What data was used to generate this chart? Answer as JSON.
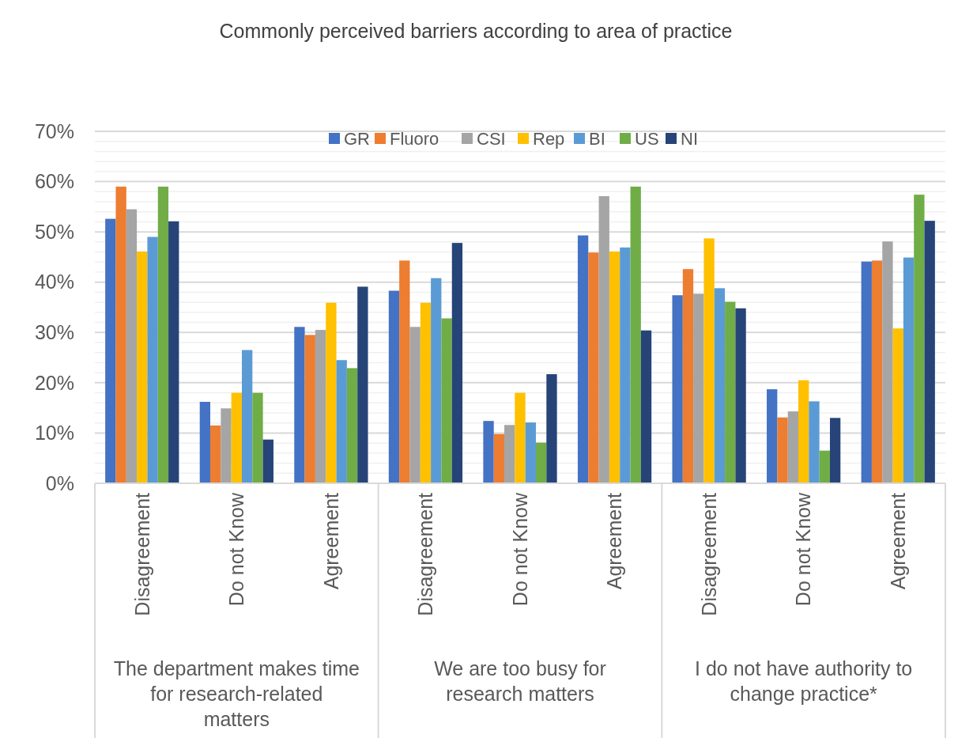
{
  "chart_data": {
    "type": "bar",
    "title": "Commonly perceived barriers according to area of practice",
    "categories": [
      "Disagreement",
      "Do not Know",
      "Agreement",
      "Disagreement",
      "Do not Know",
      "Agreement",
      "Disagreement",
      "Do not Know",
      "Agreement"
    ],
    "annotations": [
      "The department makes time for research-related matters",
      "We are too busy for research matters",
      "I do not have authority to change practice*"
    ],
    "series": [
      {
        "name": "GR",
        "color": "#4472c4",
        "values": [
          52.6,
          16.2,
          31.1,
          38.3,
          12.4,
          49.3,
          37.4,
          18.7,
          44.1
        ]
      },
      {
        "name": "Fluoro",
        "color": "#ed7d31",
        "values": [
          59,
          11.5,
          29.5,
          44.3,
          9.8,
          45.9,
          42.6,
          13.1,
          44.3
        ]
      },
      {
        "name": "CSI",
        "color": "#a5a5a5",
        "values": [
          54.5,
          14.9,
          30.5,
          31.1,
          11.6,
          57.1,
          37.7,
          14.3,
          48.1
        ]
      },
      {
        "name": "Rep",
        "color": "#ffc000",
        "values": [
          46.1,
          18,
          35.9,
          35.9,
          18,
          46.1,
          48.7,
          20.5,
          30.8
        ]
      },
      {
        "name": "BI",
        "color": "#5b9bd5",
        "values": [
          49,
          26.5,
          24.5,
          40.8,
          12.1,
          46.9,
          38.8,
          16.3,
          44.9
        ]
      },
      {
        "name": "US",
        "color": "#70ad47",
        "values": [
          59,
          18,
          22.9,
          32.8,
          8.1,
          59,
          36.1,
          6.5,
          57.4
        ]
      },
      {
        "name": "NI",
        "color": "#264478",
        "values": [
          52.1,
          8.7,
          39.1,
          47.8,
          21.7,
          30.4,
          34.8,
          13,
          52.2
        ]
      }
    ],
    "ylim": [
      0,
      70
    ],
    "yticks": [
      {
        "value": 0,
        "label": "0%"
      },
      {
        "value": 2,
        "label": null
      },
      {
        "value": 4,
        "label": null
      },
      {
        "value": 6,
        "label": null
      },
      {
        "value": 8,
        "label": null
      },
      {
        "value": 10,
        "label": "10%"
      },
      {
        "value": 12,
        "label": null
      },
      {
        "value": 14,
        "label": null
      },
      {
        "value": 16,
        "label": null
      },
      {
        "value": 18,
        "label": null
      },
      {
        "value": 20,
        "label": "20%"
      },
      {
        "value": 22,
        "label": null
      },
      {
        "value": 24,
        "label": null
      },
      {
        "value": 26,
        "label": null
      },
      {
        "value": 28,
        "label": null
      },
      {
        "value": 30,
        "label": "30%"
      },
      {
        "value": 32,
        "label": null
      },
      {
        "value": 34,
        "label": null
      },
      {
        "value": 36,
        "label": null
      },
      {
        "value": 38,
        "label": null
      },
      {
        "value": 40,
        "label": "40%"
      },
      {
        "value": 42,
        "label": null
      },
      {
        "value": 44,
        "label": null
      },
      {
        "value": 46,
        "label": null
      },
      {
        "value": 48,
        "label": null
      },
      {
        "value": 50,
        "label": "50%"
      },
      {
        "value": 52,
        "label": null
      },
      {
        "value": 54,
        "label": null
      },
      {
        "value": 56,
        "label": null
      },
      {
        "value": 58,
        "label": null
      },
      {
        "value": 60,
        "label": "60%"
      },
      {
        "value": 62,
        "label": null
      },
      {
        "value": 64,
        "label": null
      },
      {
        "value": 66,
        "label": null
      },
      {
        "value": 68,
        "label": null
      },
      {
        "value": 70,
        "label": "70%"
      }
    ],
    "grid": true,
    "legend": "top"
  }
}
